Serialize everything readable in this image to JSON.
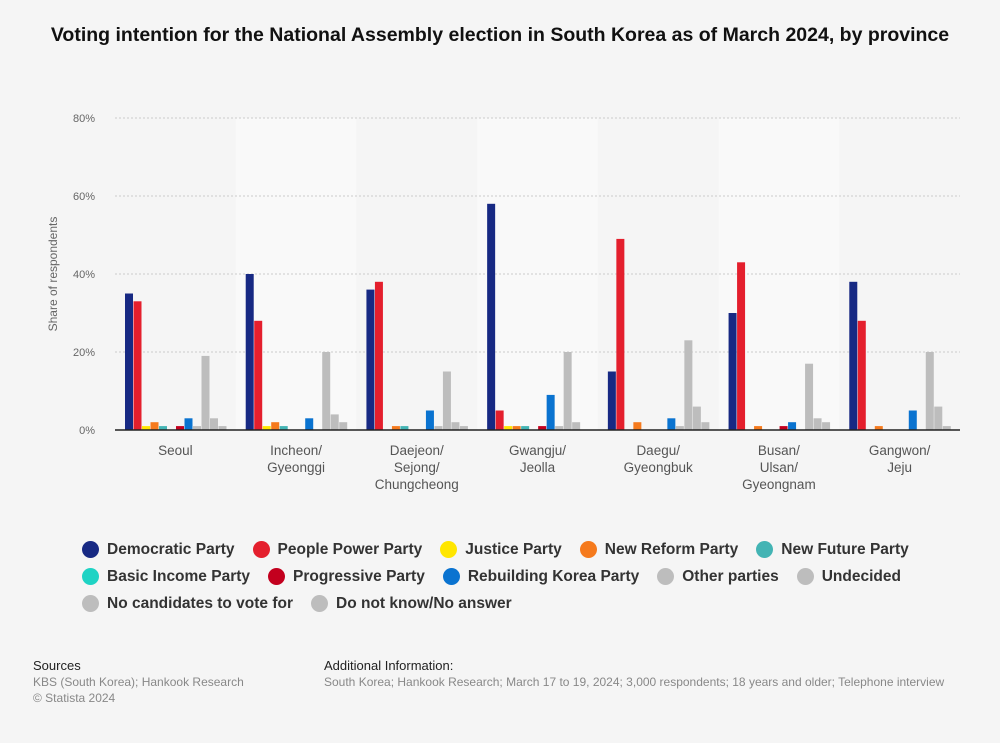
{
  "title": "Voting intention for the National Assembly election in South Korea as of March 2024, by province",
  "chart_data": {
    "type": "bar",
    "title": "Voting intention for the National Assembly election in South Korea as of March 2024, by province",
    "ylabel": "Share of respondents",
    "ylim": [
      0,
      80
    ],
    "yticks": [
      "0%",
      "20%",
      "40%",
      "60%",
      "80%"
    ],
    "grid": true,
    "legend_position": "bottom",
    "categories": [
      "Seoul",
      "Incheon/\nGyeonggi",
      "Daejeon/\nSejong/\nChungcheong",
      "Gwangju/\nJeolla",
      "Daegu/\nGyeongbuk",
      "Busan/\nUlsan/\nGyeongnam",
      "Gangwon/\nJeju"
    ],
    "series": [
      {
        "name": "Democratic Party",
        "color": "#172983",
        "values": [
          35,
          40,
          36,
          58,
          15,
          30,
          38
        ]
      },
      {
        "name": "People Power Party",
        "color": "#e41f2d",
        "values": [
          33,
          28,
          38,
          5,
          49,
          43,
          28
        ]
      },
      {
        "name": "Justice Party",
        "color": "#ffe600",
        "values": [
          1,
          1,
          0,
          1,
          0,
          0,
          0
        ]
      },
      {
        "name": "New Reform Party",
        "color": "#f57a1d",
        "values": [
          2,
          2,
          1,
          1,
          2,
          1,
          1
        ]
      },
      {
        "name": "New Future Party",
        "color": "#43b4b4",
        "values": [
          1,
          1,
          1,
          1,
          0,
          0,
          0
        ]
      },
      {
        "name": "Basic Income Party",
        "color": "#1ed3c4",
        "values": [
          0,
          0,
          0,
          0,
          0,
          0,
          0
        ]
      },
      {
        "name": "Progressive Party",
        "color": "#c3001e",
        "values": [
          1,
          0,
          0,
          1,
          0,
          1,
          0
        ]
      },
      {
        "name": "Rebuilding Korea Party",
        "color": "#0a73d0",
        "values": [
          3,
          3,
          5,
          9,
          3,
          2,
          5
        ]
      },
      {
        "name": "Other parties",
        "color": "#bdbdbd",
        "values": [
          1,
          0,
          1,
          1,
          1,
          0,
          0
        ]
      },
      {
        "name": "Undecided",
        "color": "#bdbdbd",
        "values": [
          19,
          20,
          15,
          20,
          23,
          17,
          20
        ]
      },
      {
        "name": "No candidates to vote for",
        "color": "#bdbdbd",
        "values": [
          3,
          4,
          2,
          2,
          6,
          3,
          6
        ]
      },
      {
        "name": "Do not know/No answer",
        "color": "#bdbdbd",
        "values": [
          1,
          2,
          1,
          0,
          2,
          2,
          1
        ]
      }
    ]
  },
  "footer": {
    "sources_label": "Sources",
    "sources": "KBS (South Korea); Hankook Research",
    "copyright": "© Statista 2024",
    "info_label": "Additional Information:",
    "info": "South Korea; Hankook Research; March 17 to 19, 2024; 3,000 respondents; 18 years and older; Telephone interview"
  }
}
